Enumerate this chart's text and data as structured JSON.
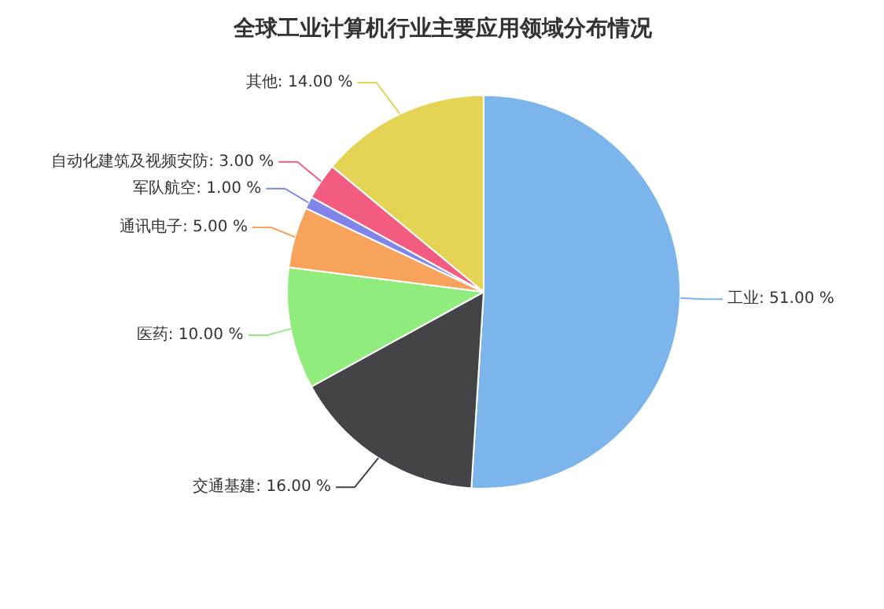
{
  "chart_data": {
    "type": "pie",
    "title": "全球工业计算机行业主要应用领域分布情况",
    "categories": [
      "工业",
      "交通基建",
      "医药",
      "通讯电子",
      "军队航空",
      "自动化建筑及视频安防",
      "其他"
    ],
    "values": [
      51,
      16,
      10,
      5,
      1,
      3,
      14
    ],
    "colors": [
      "#7cb5ec",
      "#434348",
      "#90ed7d",
      "#f7a35c",
      "#8085e9",
      "#f15c80",
      "#e4d354"
    ],
    "value_labels": [
      "51.00 %",
      "16.00 %",
      "10.00 %",
      "5.00 %",
      "1.00 %",
      "3.00 %",
      "14.00 %"
    ]
  }
}
